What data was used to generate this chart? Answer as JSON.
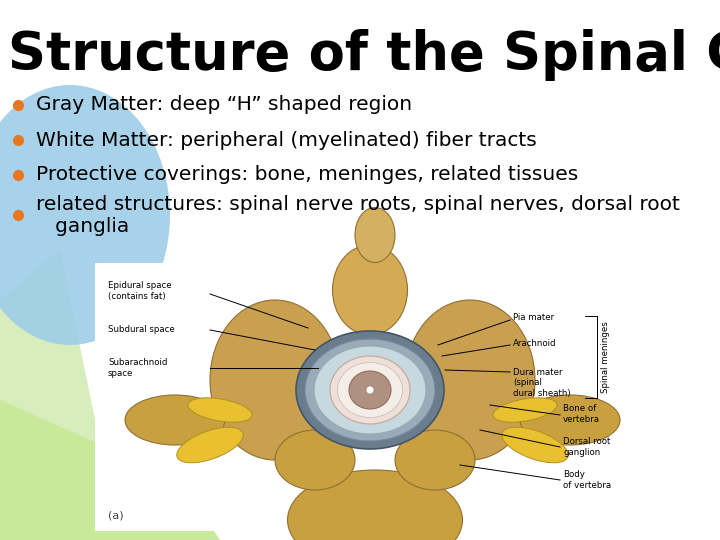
{
  "title": "Structure of the Spinal Cord",
  "title_fontsize": 38,
  "title_fontweight": "bold",
  "title_color": "#000000",
  "bullet_color": "#E87722",
  "bullet_text_color": "#000000",
  "bullet_fontsize": 14.5,
  "bullets": [
    "Gray Matter: deep “H” shaped region",
    "White Matter: peripheral (myelinated) fiber tracts",
    "Protective coverings: bone, meninges, related tissues",
    "related structures: spinal nerve roots, spinal nerves, dorsal root\n   ganglia"
  ],
  "slide_bg": "#ffffff",
  "blue_shape_color": "#9ECDE8",
  "green_shape_color": "#D8EDBC",
  "ann_fontsize": 6.2,
  "ann_color": "#000000"
}
